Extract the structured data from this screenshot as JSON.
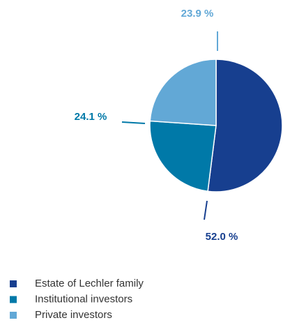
{
  "chart_data": {
    "type": "pie",
    "categories": [
      "Estate of Lechler family",
      "Institutional investors",
      "Private investors"
    ],
    "values": [
      52.0,
      24.1,
      23.9
    ],
    "value_labels": [
      "52.0 %",
      "24.1 %",
      "23.9 %"
    ],
    "colors": [
      "#173f8f",
      "#0079a8",
      "#62a8d6"
    ],
    "legend": "bottom-left"
  }
}
